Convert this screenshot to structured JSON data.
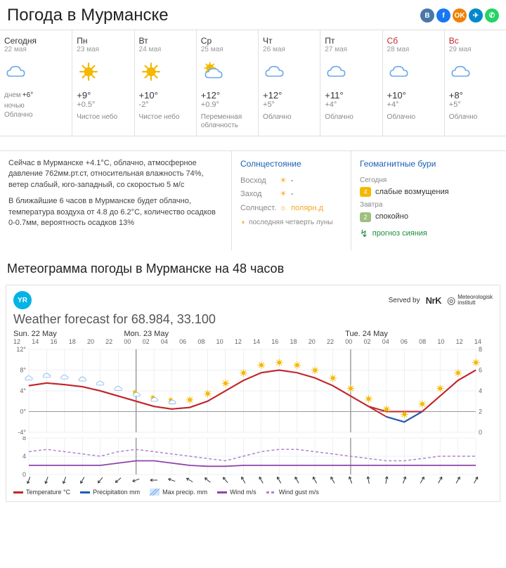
{
  "header": {
    "title": "Погода в Мурманске",
    "social": [
      {
        "name": "vk",
        "bg": "#4a76a8",
        "glyph": "B"
      },
      {
        "name": "fb",
        "bg": "#1877f2",
        "glyph": "f"
      },
      {
        "name": "ok",
        "bg": "#ee8208",
        "glyph": "OK"
      },
      {
        "name": "tg",
        "bg": "#0088cc",
        "glyph": "✈"
      },
      {
        "name": "wa",
        "bg": "#25d366",
        "glyph": "✆"
      }
    ]
  },
  "forecast": [
    {
      "name": "Сегодня",
      "date": "22 мая",
      "icon": "cloud",
      "hi_lbl": "днем",
      "hi": "+6°",
      "lo_lbl": "ночью",
      "desc": "Облачно",
      "weekend": false,
      "today": true
    },
    {
      "name": "Пн",
      "date": "23 мая",
      "icon": "sun",
      "hi": "+9°",
      "lo": "+0.5°",
      "desc": "Чистое небо",
      "weekend": false
    },
    {
      "name": "Вт",
      "date": "24 мая",
      "icon": "sun",
      "hi": "+10°",
      "lo": "-2°",
      "desc": "Чистое небо",
      "weekend": false
    },
    {
      "name": "Ср",
      "date": "25 мая",
      "icon": "partly",
      "hi": "+12°",
      "lo": "+0.9°",
      "desc": "Переменная облачность",
      "weekend": false
    },
    {
      "name": "Чт",
      "date": "26 мая",
      "icon": "cloud",
      "hi": "+12°",
      "lo": "+5°",
      "desc": "Облачно",
      "weekend": false
    },
    {
      "name": "Пт",
      "date": "27 мая",
      "icon": "cloud",
      "hi": "+11°",
      "lo": "+4°",
      "desc": "Облачно",
      "weekend": false
    },
    {
      "name": "Сб",
      "date": "28 мая",
      "icon": "cloud",
      "hi": "+10°",
      "lo": "+4°",
      "desc": "Облачно",
      "weekend": true
    },
    {
      "name": "Вс",
      "date": "29 мая",
      "icon": "cloud",
      "hi": "+8°",
      "lo": "+5°",
      "desc": "Облачно",
      "weekend": true
    }
  ],
  "now": {
    "p1": "Сейчас в Мурманске +4.1°C, облачно, атмосферное давление 762мм.рт.ст, относительная влажность 74%, ветер слабый, юго-западный, со скоростью 5 м/с",
    "p2": "В ближайшие 6 часов в Мурманске будет облачно, температура воздуха от 4.8 до 6.2°C, количество осадков 0-0.7мм, вероятность осадков 13%"
  },
  "sun": {
    "title": "Солнцестояние",
    "sunrise_lbl": "Восход",
    "sunrise": "-",
    "sunset_lbl": "Заход",
    "sunset": "-",
    "solstice_lbl": "Солнцест.",
    "solstice": "полярн.д",
    "moon": "последняя четверть луны"
  },
  "geo": {
    "title": "Геомагнитные бури",
    "today_lbl": "Сегодня",
    "today_badge": "4",
    "today_badge_bg": "#f5b800",
    "today_text": "слабые возмущения",
    "tomorrow_lbl": "Завтра",
    "tomorrow_badge": "2",
    "tomorrow_badge_bg": "#9fbf7f",
    "tomorrow_text": "спокойно",
    "aurora_link": "прогноз сияния"
  },
  "meteo": {
    "title": "Метеограмма погоды в Мурманске на 48 часов",
    "subtitle": "Weather forecast for 68.984, 33.100",
    "served_by": "Served by",
    "days": [
      "Sun. 22 May",
      "Mon. 23 May",
      "Tue. 24 May"
    ],
    "hours": [
      "12",
      "14",
      "16",
      "18",
      "20",
      "22",
      "00",
      "02",
      "04",
      "06",
      "08",
      "10",
      "12",
      "14",
      "16",
      "18",
      "20",
      "22",
      "00",
      "02",
      "04",
      "06",
      "08",
      "10",
      "12",
      "14"
    ],
    "tempChart": {
      "ylim": [
        -4,
        12
      ],
      "ytick_step": 4,
      "ylim_right": [
        0,
        8
      ],
      "ytick_right_step": 2,
      "grid_color": "#d8e0e8",
      "day_sep_color": "#888",
      "zero_line_color": "#999",
      "temp_color": "#c1272d",
      "precip_color": "#1a5fb4",
      "maxprecip_color": "#6aa8e8",
      "temp": [
        5,
        5.5,
        5.2,
        4.8,
        4,
        3,
        2,
        1,
        0.5,
        0.8,
        2,
        4,
        6,
        7.5,
        8,
        7.5,
        6.5,
        5,
        3,
        1,
        -1,
        -2,
        0,
        3,
        6,
        8
      ],
      "icons": [
        "cloud",
        "cloud",
        "cloud",
        "cloud",
        "cloud",
        "cloud",
        "partly",
        "partly",
        "partly",
        "sun",
        "sun",
        "sun",
        "sun",
        "sun",
        "sun",
        "sun",
        "sun",
        "sun",
        "sun",
        "sun",
        "sun",
        "sun",
        "sun",
        "sun",
        "sun",
        "sun"
      ]
    },
    "windChart": {
      "ylim": [
        0,
        8
      ],
      "ytick_step": 4,
      "wind_color": "#8e44ad",
      "gust_color": "#b084cc",
      "wind": [
        2,
        2,
        2,
        2,
        2,
        2.5,
        3,
        3,
        2.5,
        2,
        1.8,
        1.8,
        2,
        2,
        2,
        2,
        2,
        2,
        2,
        2,
        2,
        2,
        2,
        2,
        2,
        2
      ],
      "gust": [
        5,
        5.5,
        5,
        4.5,
        4,
        5,
        5.5,
        5,
        4.5,
        4,
        3.5,
        3,
        4,
        5,
        5.5,
        5.5,
        5,
        4.5,
        4,
        3.5,
        3,
        3,
        3.5,
        4,
        4,
        4
      ],
      "arrows": [
        200,
        200,
        200,
        210,
        220,
        230,
        250,
        270,
        290,
        300,
        310,
        320,
        330,
        330,
        330,
        330,
        330,
        330,
        340,
        350,
        10,
        20,
        30,
        30,
        30,
        30
      ]
    },
    "legend": [
      {
        "label": "Temperature °C",
        "color": "#c1272d",
        "style": "solid"
      },
      {
        "label": "Precipitation mm",
        "color": "#1a5fb4",
        "style": "solid"
      },
      {
        "label": "Max precip. mm",
        "color": "#6aa8e8",
        "style": "hatch"
      },
      {
        "label": "Wind m/s",
        "color": "#8e44ad",
        "style": "solid"
      },
      {
        "label": "Wind gust m/s",
        "color": "#b084cc",
        "style": "dashed"
      }
    ]
  }
}
